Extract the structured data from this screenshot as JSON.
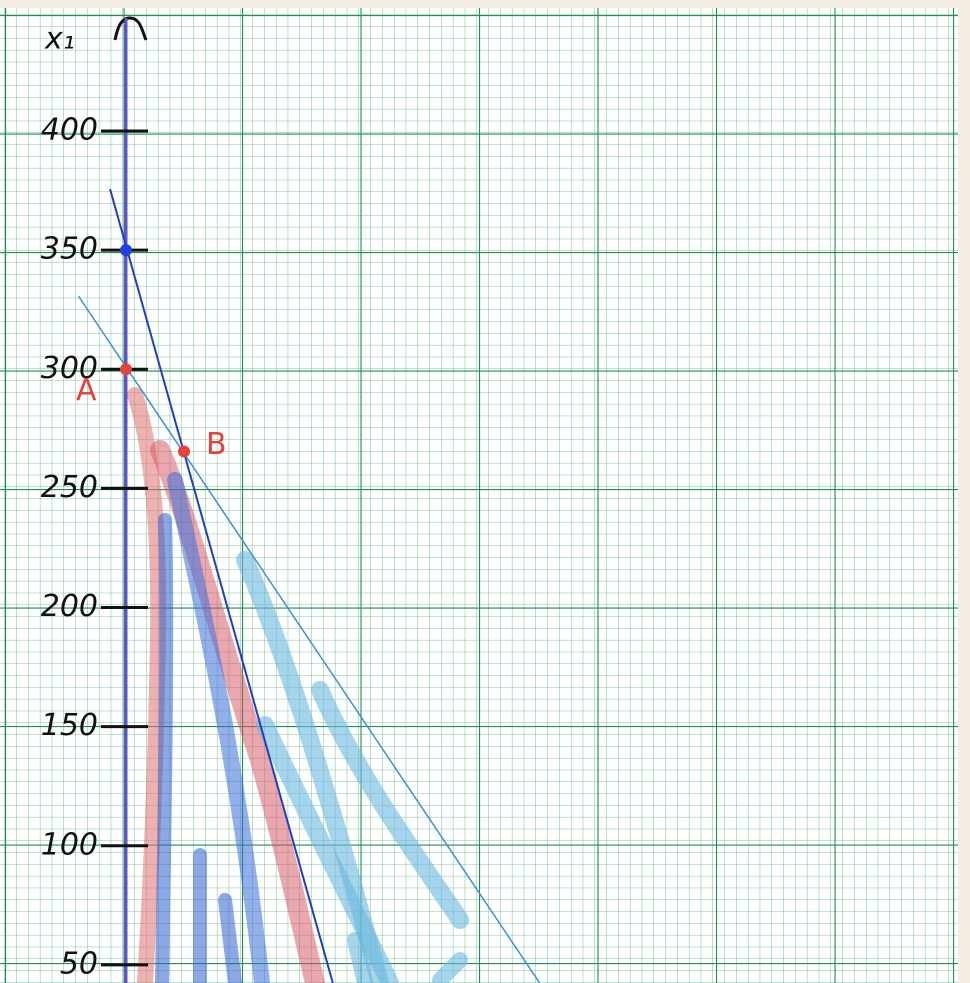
{
  "chart_data": {
    "type": "line",
    "y_label": "x₁",
    "ylim": [
      42.4,
      455
    ],
    "xlim": [
      -53,
      355
    ],
    "yticks": [
      50,
      100,
      150,
      200,
      250,
      300,
      350,
      400
    ],
    "series": [
      {
        "color": "#1f3fbf",
        "x": [
          -6.7,
          87
        ],
        "values": [
          375.6,
          42.4
        ]
      },
      {
        "color": "#3a8fd6",
        "x": [
          -20,
          174
        ],
        "values": [
          330.7,
          42.4
        ]
      }
    ],
    "points": [
      {
        "label": "A",
        "x": 0,
        "y": 300,
        "color": "#e8403a"
      },
      {
        "label": "B",
        "x": 24.4,
        "y": 265.5,
        "color": "#e8403a"
      },
      {
        "x": 0,
        "y": 350,
        "color": "#2040e0"
      }
    ]
  }
}
